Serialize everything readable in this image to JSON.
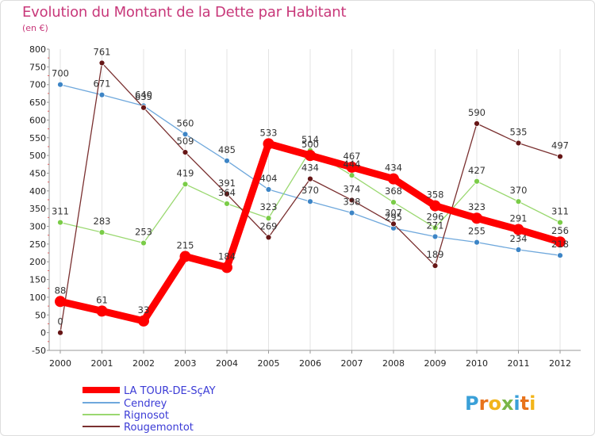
{
  "title": "Evolution du Montant de la Dette par Habitant",
  "subtitle": "(en €)",
  "brand": {
    "letters": [
      "P",
      "r",
      "o",
      "x",
      "i",
      "t",
      "i"
    ],
    "colors": [
      "#3aa0d8",
      "#e8731c",
      "#f2b51a",
      "#7ab648",
      "#3aa0d8",
      "#e8731c",
      "#f2b51a"
    ]
  },
  "chart_data": {
    "type": "line",
    "title": "Evolution du Montant de la Dette par Habitant",
    "ylabel": "(en €)",
    "xlabel": "",
    "x": [
      2000,
      2001,
      2002,
      2003,
      2004,
      2005,
      2006,
      2007,
      2008,
      2009,
      2010,
      2011,
      2012
    ],
    "x_tick_labels": [
      "2000",
      "2001",
      "2002",
      "2003",
      "2004",
      "2005",
      "2006",
      "2007",
      "2008",
      "2009",
      "2010",
      "2011",
      "2012"
    ],
    "ylim": [
      -50,
      800
    ],
    "y_ticks": [
      -50,
      0,
      50,
      100,
      150,
      200,
      250,
      300,
      350,
      400,
      450,
      500,
      550,
      600,
      650,
      700,
      750,
      800
    ],
    "grid": "vertical",
    "legend_position": "bottom-left",
    "series": [
      {
        "name": "LA TOUR-DE-SçAY",
        "color": "#ff0000",
        "line_width": 9,
        "marker_color": "#ff0000",
        "marker_size": 7,
        "values": [
          88,
          61,
          33,
          215,
          184,
          533,
          500,
          467,
          434,
          358,
          323,
          291,
          256
        ],
        "labels": [
          "88",
          "61",
          "33",
          "215",
          "184",
          "533",
          "500",
          "467",
          "434",
          "358",
          "323",
          "291",
          "256"
        ]
      },
      {
        "name": "Cendrey",
        "color": "#6fa8dc",
        "line_width": 1.3,
        "marker_color": "#3d85c6",
        "marker_size": 3.5,
        "values": [
          700,
          671,
          640,
          560,
          485,
          404,
          370,
          338,
          295,
          271,
          255,
          234,
          218
        ],
        "labels": [
          "700",
          "671",
          "640",
          "560",
          "485",
          "404",
          "370",
          "338",
          "295",
          "271",
          "255",
          "234",
          "218"
        ]
      },
      {
        "name": "Rignosot",
        "color": "#9ad870",
        "line_width": 1.3,
        "marker_color": "#7acc47",
        "marker_size": 3.5,
        "values": [
          311,
          283,
          253,
          419,
          364,
          323,
          514,
          444,
          368,
          296,
          427,
          370,
          311
        ],
        "labels": [
          "311",
          "283",
          "253",
          "419",
          "364",
          "323",
          "514",
          "444",
          "368",
          "296",
          "427",
          "370",
          "311"
        ]
      },
      {
        "name": "Rougemontot",
        "color": "#7a3030",
        "line_width": 1.3,
        "marker_color": "#661616",
        "marker_size": 3.5,
        "values": [
          0,
          761,
          635,
          509,
          391,
          269,
          434,
          374,
          307,
          189,
          590,
          535,
          497
        ],
        "labels": [
          "0",
          "761",
          "635",
          "509",
          "391",
          "269",
          "434",
          "374",
          "307",
          "189",
          "590",
          "535",
          "497"
        ]
      }
    ]
  }
}
